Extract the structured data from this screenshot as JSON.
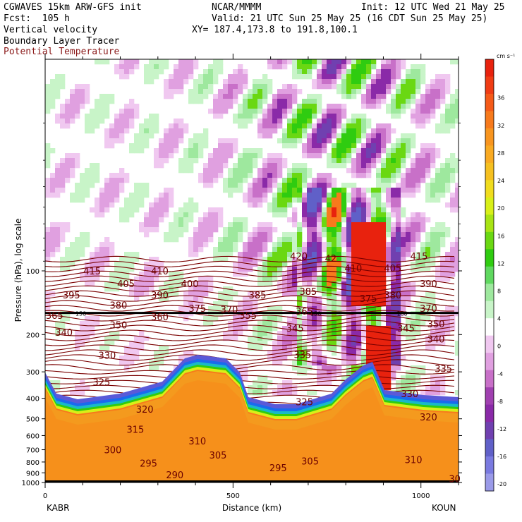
{
  "header": {
    "model": "CGWAVES 15km ARW-GFS init",
    "fcst": "Fcst:  105 h",
    "field1": "Vertical velocity",
    "field2": "Boundary Layer Tracer",
    "field3": "Potential Temperature",
    "org": "NCAR/MMMM",
    "init": "Init: 12 UTC Wed 21 May 25",
    "valid": "Valid: 21 UTC Sun 25 May 25 (16 CDT Sun 25 May 25)",
    "xy": "XY= 187.4,173.8 to 191.8,100.1"
  },
  "chart_data": {
    "type": "heatmap",
    "ylabel": "Pressure (hPa), log scale",
    "xlabel": "Distance (km)",
    "x_left_station": "KABR",
    "x_right_station": "KOUN",
    "xlim": [
      0,
      1100
    ],
    "ylim": [
      1000,
      10
    ],
    "yscale": "log",
    "x_ticks": [
      0,
      500,
      1000
    ],
    "y_ticks": [
      100,
      200,
      300,
      400,
      500,
      600,
      700,
      800,
      900,
      1000
    ],
    "colorbar": {
      "unit": "cm s⁻¹",
      "tick_labels": [
        36,
        32,
        28,
        24,
        20,
        16,
        12,
        8,
        4,
        0,
        -4,
        -8,
        -12,
        -16,
        -20
      ],
      "colors": [
        "#e8220e",
        "#f03c14",
        "#f55a18",
        "#f77a1c",
        "#f8951f",
        "#f9aa22",
        "#f5c020",
        "#f0dc1e",
        "#d8ef18",
        "#a8e414",
        "#6ad812",
        "#2fcc10",
        "#5fd85f",
        "#9ee89e",
        "#c8f4c8",
        "#ffffff",
        "#f0c8f0",
        "#e0a0e0",
        "#c870c8",
        "#a040b0",
        "#8a2aa8",
        "#7040b0",
        "#6060c8",
        "#7a7ae0",
        "#9a9ae8"
      ]
    },
    "theta_contour_labels": [
      {
        "v": "415",
        "x": 125,
        "p": 100
      },
      {
        "v": "405",
        "x": 215,
        "p": 115
      },
      {
        "v": "410",
        "x": 305,
        "p": 100
      },
      {
        "v": "400",
        "x": 385,
        "p": 115
      },
      {
        "v": "395",
        "x": 70,
        "p": 130
      },
      {
        "v": "390",
        "x": 305,
        "p": 130
      },
      {
        "v": "380",
        "x": 195,
        "p": 145
      },
      {
        "v": "375",
        "x": 405,
        "p": 150
      },
      {
        "v": "370",
        "x": 490,
        "p": 152
      },
      {
        "v": "385",
        "x": 565,
        "p": 130
      },
      {
        "v": "365",
        "x": 25,
        "p": 162
      },
      {
        "v": "360",
        "x": 305,
        "p": 165
      },
      {
        "v": "355",
        "x": 540,
        "p": 162
      },
      {
        "v": "350",
        "x": 195,
        "p": 180
      },
      {
        "v": "345",
        "x": 665,
        "p": 186
      },
      {
        "v": "340",
        "x": 50,
        "p": 195
      },
      {
        "v": "335",
        "x": 685,
        "p": 248
      },
      {
        "v": "330",
        "x": 165,
        "p": 250
      },
      {
        "v": "325",
        "x": 150,
        "p": 335
      },
      {
        "v": "320",
        "x": 265,
        "p": 450
      },
      {
        "v": "315",
        "x": 240,
        "p": 560
      },
      {
        "v": "310",
        "x": 405,
        "p": 635
      },
      {
        "v": "305",
        "x": 460,
        "p": 740
      },
      {
        "v": "300",
        "x": 180,
        "p": 700
      },
      {
        "v": "295",
        "x": 275,
        "p": 810
      },
      {
        "v": "290",
        "x": 345,
        "p": 920
      },
      {
        "v": "420",
        "x": 675,
        "p": 85
      },
      {
        "v": "42",
        "x": 760,
        "p": 87
      },
      {
        "v": "410",
        "x": 820,
        "p": 97
      },
      {
        "v": "405",
        "x": 925,
        "p": 97
      },
      {
        "v": "415",
        "x": 995,
        "p": 85
      },
      {
        "v": "385",
        "x": 700,
        "p": 125
      },
      {
        "v": "375",
        "x": 860,
        "p": 135
      },
      {
        "v": "380",
        "x": 925,
        "p": 130
      },
      {
        "v": "390",
        "x": 1020,
        "p": 115
      },
      {
        "v": "370",
        "x": 1020,
        "p": 150
      },
      {
        "v": "365",
        "x": 690,
        "p": 155
      },
      {
        "v": "350",
        "x": 1040,
        "p": 178
      },
      {
        "v": "345",
        "x": 960,
        "p": 186
      },
      {
        "v": "340",
        "x": 1040,
        "p": 210
      },
      {
        "v": "335",
        "x": 1060,
        "p": 290
      },
      {
        "v": "330",
        "x": 970,
        "p": 380
      },
      {
        "v": "325",
        "x": 690,
        "p": 415
      },
      {
        "v": "320",
        "x": 1020,
        "p": 490
      },
      {
        "v": "310",
        "x": 980,
        "p": 780
      },
      {
        "v": "305",
        "x": 705,
        "p": 790
      },
      {
        "v": "295",
        "x": 620,
        "p": 850
      },
      {
        "v": "30",
        "x": 1090,
        "p": 960
      }
    ],
    "tropopause_labels": [
      {
        "v": "158",
        "x": 95,
        "p": 158
      },
      {
        "v": "150",
        "x": 720,
        "p": 158
      },
      {
        "v": "160",
        "x": 950,
        "p": 158
      }
    ]
  }
}
